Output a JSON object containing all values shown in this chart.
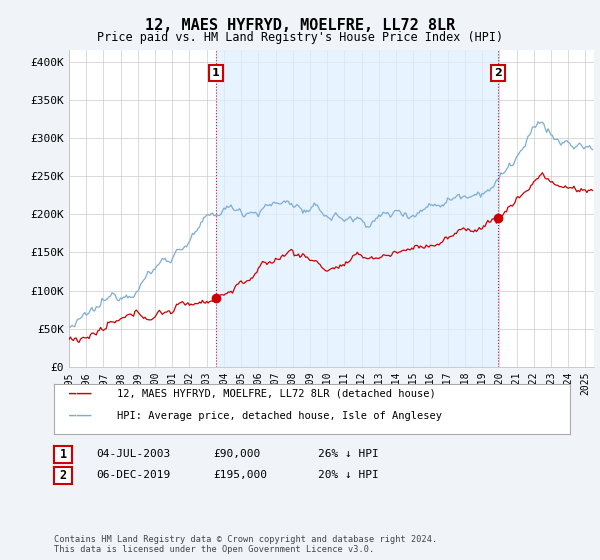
{
  "title": "12, MAES HYFRYD, MOELFRE, LL72 8LR",
  "subtitle": "Price paid vs. HM Land Registry's House Price Index (HPI)",
  "ylabel_ticks": [
    "£0",
    "£50K",
    "£100K",
    "£150K",
    "£200K",
    "£250K",
    "£300K",
    "£350K",
    "£400K"
  ],
  "ytick_values": [
    0,
    50000,
    100000,
    150000,
    200000,
    250000,
    300000,
    350000,
    400000
  ],
  "ylim": [
    0,
    415000
  ],
  "xlim_start": 1995.0,
  "xlim_end": 2025.5,
  "hpi_color": "#7dadd4",
  "price_color": "#cc0000",
  "vline_color": "#cc0000",
  "shade_color": "#ddeeff",
  "marker1_date": 2003.54,
  "marker2_date": 2019.92,
  "marker1_price": 90000,
  "marker2_price": 195000,
  "legend_label1": "12, MAES HYFRYD, MOELFRE, LL72 8LR (detached house)",
  "legend_label2": "HPI: Average price, detached house, Isle of Anglesey",
  "ann1_text": "04-JUL-2003",
  "ann1_price": "£90,000",
  "ann1_hpi": "26% ↓ HPI",
  "ann2_text": "06-DEC-2019",
  "ann2_price": "£195,000",
  "ann2_hpi": "20% ↓ HPI",
  "footer": "Contains HM Land Registry data © Crown copyright and database right 2024.\nThis data is licensed under the Open Government Licence v3.0.",
  "background_color": "#f0f4f8",
  "plot_bg_color": "#ffffff",
  "grid_color": "#cccccc",
  "ann_box_color": "#cc0000"
}
